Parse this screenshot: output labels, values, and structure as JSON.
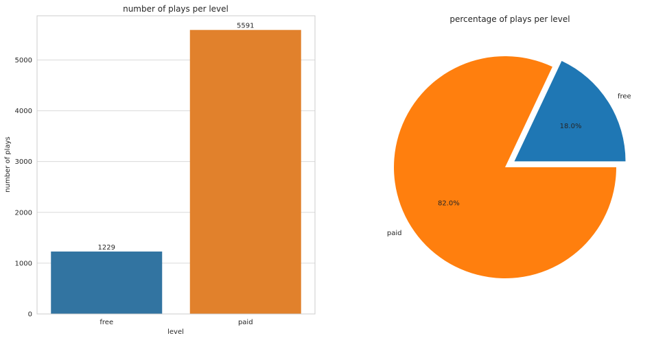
{
  "chart_data": [
    {
      "type": "bar",
      "title": "number of plays per level",
      "xlabel": "level",
      "ylabel": "number of plays",
      "categories": [
        "free",
        "paid"
      ],
      "values": [
        1229,
        5591
      ],
      "data_labels": [
        "1229",
        "5591"
      ],
      "ylim": [
        0,
        5870
      ],
      "yticks": [
        0,
        1000,
        2000,
        3000,
        4000,
        5000
      ],
      "ytick_labels": [
        "0",
        "1000",
        "2000",
        "3000",
        "4000",
        "5000"
      ],
      "grid": true,
      "colors": [
        "#3274a1",
        "#e1812c"
      ]
    },
    {
      "type": "pie",
      "title": "percentage of plays per level",
      "labels": [
        "free",
        "paid"
      ],
      "values": [
        18.0,
        82.0
      ],
      "pct_labels": [
        "18.0%",
        "82.0%"
      ],
      "explode": [
        "free"
      ],
      "colors": [
        "#1f77b4",
        "#ff7f0e"
      ]
    }
  ]
}
